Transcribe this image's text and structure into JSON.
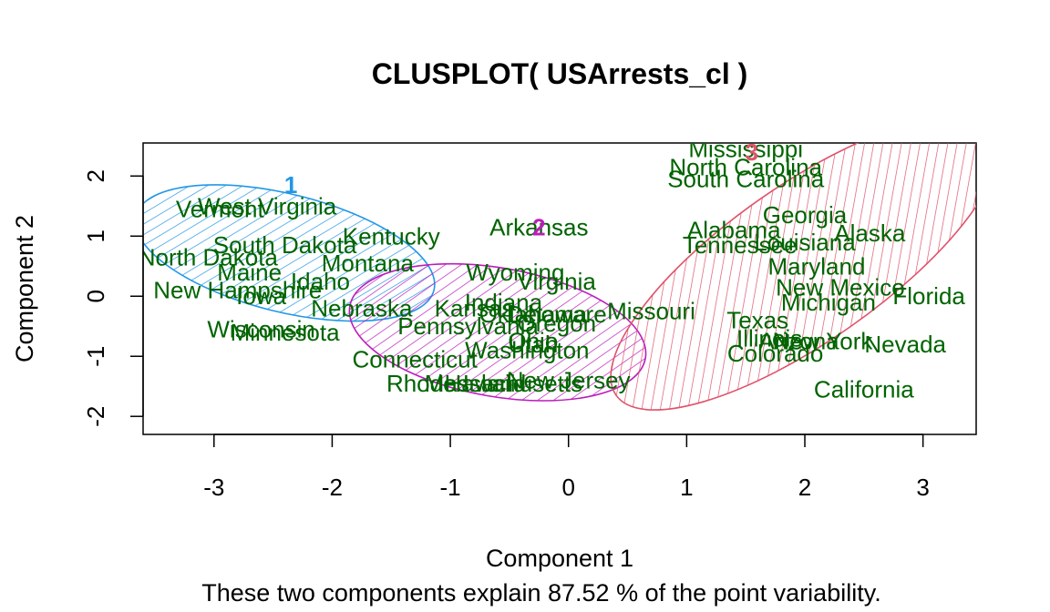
{
  "chart_data": {
    "type": "scatter",
    "title": "CLUSPLOT( USArrests_cl )",
    "xlabel": "Component 1",
    "ylabel": "Component 2",
    "subtitle": "These two components explain 87.52 % of the point variability.",
    "xlim": [
      -3.6,
      3.45
    ],
    "ylim": [
      -2.3,
      2.55
    ],
    "xticks": [
      -3,
      -2,
      -1,
      0,
      1,
      2,
      3
    ],
    "yticks": [
      -2,
      -1,
      0,
      1,
      2
    ],
    "grid": false,
    "colors": {
      "label": "#006400",
      "cluster1": "#2297E6",
      "cluster2": "#BC1DBC",
      "cluster3": "#DF536B",
      "axis": "#000000"
    },
    "clusters": [
      {
        "id": "1",
        "center": [
          -2.4,
          0.72
        ],
        "rx": 1.3,
        "ry": 0.98,
        "angle": 14,
        "color": "cluster1",
        "label_pos": [
          -2.35,
          1.85
        ]
      },
      {
        "id": "2",
        "center": [
          -0.6,
          -0.6
        ],
        "rx": 1.27,
        "ry": 1.07,
        "angle": 10,
        "color": "cluster2",
        "label_pos": [
          -0.25,
          1.15
        ]
      },
      {
        "id": "3",
        "center": [
          2.0,
          0.55
        ],
        "rx": 1.95,
        "ry": 1.3,
        "angle": -35,
        "color": "cluster3",
        "label_pos": [
          1.55,
          2.4
        ]
      }
    ],
    "points": [
      {
        "name": "Alabama",
        "x": 1.4,
        "y": 1.1,
        "cluster": 3
      },
      {
        "name": "Alaska",
        "x": 2.55,
        "y": 1.05,
        "cluster": 3
      },
      {
        "name": "Arizona",
        "x": 1.95,
        "y": -0.75,
        "cluster": 3
      },
      {
        "name": "Arkansas",
        "x": -0.25,
        "y": 1.15,
        "cluster": 2
      },
      {
        "name": "California",
        "x": 2.5,
        "y": -1.55,
        "cluster": 3
      },
      {
        "name": "Colorado",
        "x": 1.75,
        "y": -0.95,
        "cluster": 3
      },
      {
        "name": "Connecticut",
        "x": -1.3,
        "y": -1.05,
        "cluster": 2
      },
      {
        "name": "Delaware",
        "x": -0.1,
        "y": -0.3,
        "cluster": 2
      },
      {
        "name": "Florida",
        "x": 3.05,
        "y": 0.0,
        "cluster": 3
      },
      {
        "name": "Georgia",
        "x": 2.0,
        "y": 1.35,
        "cluster": 3
      },
      {
        "name": "Hawaii",
        "x": -0.75,
        "y": -1.45,
        "cluster": 2
      },
      {
        "name": "Idaho",
        "x": -2.1,
        "y": 0.25,
        "cluster": 1
      },
      {
        "name": "Illinois",
        "x": 1.7,
        "y": -0.7,
        "cluster": 3
      },
      {
        "name": "Indiana",
        "x": -0.55,
        "y": -0.1,
        "cluster": 2
      },
      {
        "name": "Iowa",
        "x": -2.6,
        "y": 0.0,
        "cluster": 1
      },
      {
        "name": "Kansas",
        "x": -0.8,
        "y": -0.2,
        "cluster": 2
      },
      {
        "name": "Kentucky",
        "x": -1.5,
        "y": 1.0,
        "cluster": 1
      },
      {
        "name": "Louisiana",
        "x": 2.0,
        "y": 0.9,
        "cluster": 3
      },
      {
        "name": "Maine",
        "x": -2.7,
        "y": 0.4,
        "cluster": 1
      },
      {
        "name": "Maryland",
        "x": 2.1,
        "y": 0.5,
        "cluster": 3
      },
      {
        "name": "Massachusetts",
        "x": -0.55,
        "y": -1.45,
        "cluster": 2
      },
      {
        "name": "Michigan",
        "x": 2.2,
        "y": -0.1,
        "cluster": 3
      },
      {
        "name": "Minnesota",
        "x": -2.4,
        "y": -0.6,
        "cluster": 1
      },
      {
        "name": "Mississippi",
        "x": 1.5,
        "y": 2.45,
        "cluster": 3
      },
      {
        "name": "Missouri",
        "x": 0.7,
        "y": -0.25,
        "cluster": 3
      },
      {
        "name": "Montana",
        "x": -1.7,
        "y": 0.55,
        "cluster": 1
      },
      {
        "name": "Nebraska",
        "x": -1.75,
        "y": -0.2,
        "cluster": 1
      },
      {
        "name": "Nevada",
        "x": 2.85,
        "y": -0.8,
        "cluster": 3
      },
      {
        "name": "New Hampshire",
        "x": -2.8,
        "y": 0.1,
        "cluster": 1
      },
      {
        "name": "New Jersey",
        "x": 0.0,
        "y": -1.4,
        "cluster": 2
      },
      {
        "name": "New Mexico",
        "x": 2.3,
        "y": 0.15,
        "cluster": 3
      },
      {
        "name": "New York",
        "x": 2.15,
        "y": -0.75,
        "cluster": 3
      },
      {
        "name": "North Carolina",
        "x": 1.5,
        "y": 2.15,
        "cluster": 3
      },
      {
        "name": "North Dakota",
        "x": -3.05,
        "y": 0.65,
        "cluster": 1
      },
      {
        "name": "Ohio",
        "x": -0.3,
        "y": -0.75,
        "cluster": 2
      },
      {
        "name": "Oklahoma",
        "x": -0.3,
        "y": -0.3,
        "cluster": 2
      },
      {
        "name": "Oregon",
        "x": -0.1,
        "y": -0.45,
        "cluster": 2
      },
      {
        "name": "Pennsylvania",
        "x": -0.85,
        "y": -0.5,
        "cluster": 2
      },
      {
        "name": "Rhode Island",
        "x": -0.95,
        "y": -1.45,
        "cluster": 2
      },
      {
        "name": "South Carolina",
        "x": 1.5,
        "y": 1.95,
        "cluster": 3
      },
      {
        "name": "South Dakota",
        "x": -2.4,
        "y": 0.85,
        "cluster": 1
      },
      {
        "name": "Tennessee",
        "x": 1.45,
        "y": 0.85,
        "cluster": 3
      },
      {
        "name": "Texas",
        "x": 1.6,
        "y": -0.4,
        "cluster": 3
      },
      {
        "name": "Utah",
        "x": -0.3,
        "y": -0.8,
        "cluster": 2
      },
      {
        "name": "Vermont",
        "x": -2.95,
        "y": 1.45,
        "cluster": 1
      },
      {
        "name": "Virginia",
        "x": -0.1,
        "y": 0.25,
        "cluster": 2
      },
      {
        "name": "Washington",
        "x": -0.35,
        "y": -0.9,
        "cluster": 2
      },
      {
        "name": "West Virginia",
        "x": -2.55,
        "y": 1.5,
        "cluster": 1
      },
      {
        "name": "Wisconsin",
        "x": -2.6,
        "y": -0.55,
        "cluster": 1
      },
      {
        "name": "Wyoming",
        "x": -0.45,
        "y": 0.4,
        "cluster": 2
      }
    ]
  }
}
